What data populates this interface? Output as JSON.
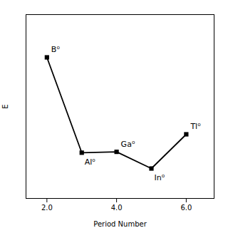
{
  "chart_data": {
    "type": "line",
    "x": [
      2,
      3,
      4,
      5,
      6
    ],
    "values": [
      800,
      577,
      579,
      540,
      620
    ],
    "annotations": [
      {
        "x": 2,
        "y": 800,
        "text": "B⁰"
      },
      {
        "x": 3,
        "y": 577,
        "text": "Al⁰"
      },
      {
        "x": 4,
        "y": 579,
        "text": "Ga⁰"
      },
      {
        "x": 5,
        "y": 540,
        "text": "In⁰"
      },
      {
        "x": 6,
        "y": 620,
        "text": "Tl⁰"
      }
    ],
    "xlabel": "Period Number",
    "ylabel": "E",
    "xlim": [
      1.4,
      6.8
    ],
    "xticks": [
      2,
      4,
      6
    ],
    "ylim": [
      470,
      900
    ],
    "yticks": [],
    "tick_labels": "x",
    "grid": false,
    "color": "#000000",
    "marker": "square"
  }
}
